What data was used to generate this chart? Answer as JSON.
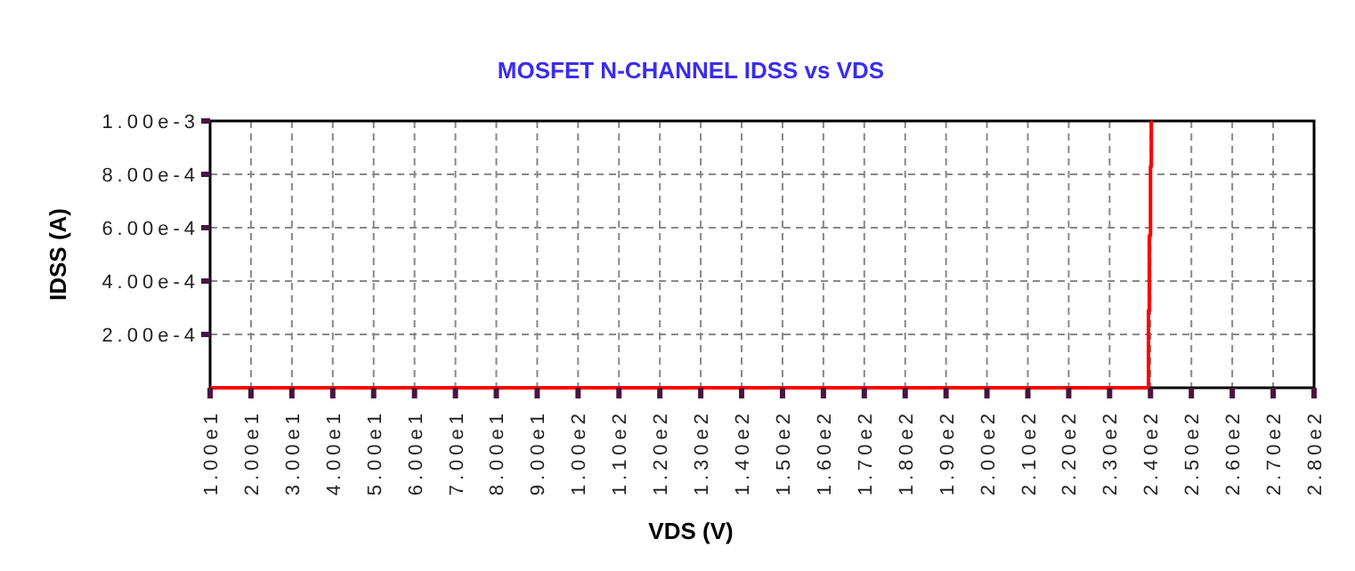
{
  "chart_data": {
    "type": "line",
    "title": "MOSFET N-CHANNEL IDSS vs VDS",
    "xlabel": "VDS (V)",
    "ylabel": "IDSS (A)",
    "xlim": [
      10,
      280
    ],
    "xticks": [
      {
        "value": 10,
        "label": "1.00e1"
      },
      {
        "value": 20,
        "label": "2.00e1"
      },
      {
        "value": 30,
        "label": "3.00e1"
      },
      {
        "value": 40,
        "label": "4.00e1"
      },
      {
        "value": 50,
        "label": "5.00e1"
      },
      {
        "value": 60,
        "label": "6.00e1"
      },
      {
        "value": 70,
        "label": "7.00e1"
      },
      {
        "value": 80,
        "label": "8.00e1"
      },
      {
        "value": 90,
        "label": "9.00e1"
      },
      {
        "value": 100,
        "label": "1.00e2"
      },
      {
        "value": 110,
        "label": "1.10e2"
      },
      {
        "value": 120,
        "label": "1.20e2"
      },
      {
        "value": 130,
        "label": "1.30e2"
      },
      {
        "value": 140,
        "label": "1.40e2"
      },
      {
        "value": 150,
        "label": "1.50e2"
      },
      {
        "value": 160,
        "label": "1.60e2"
      },
      {
        "value": 170,
        "label": "1.70e2"
      },
      {
        "value": 180,
        "label": "1.80e2"
      },
      {
        "value": 190,
        "label": "1.90e2"
      },
      {
        "value": 200,
        "label": "2.00e2"
      },
      {
        "value": 210,
        "label": "2.10e2"
      },
      {
        "value": 220,
        "label": "2.20e2"
      },
      {
        "value": 230,
        "label": "2.30e2"
      },
      {
        "value": 240,
        "label": "2.40e2"
      },
      {
        "value": 250,
        "label": "2.50e2"
      },
      {
        "value": 260,
        "label": "2.60e2"
      },
      {
        "value": 270,
        "label": "2.70e2"
      },
      {
        "value": 280,
        "label": "2.80e2"
      }
    ],
    "ylim": [
      0,
      0.001
    ],
    "yticks": [
      {
        "value": 0.0002,
        "label": "2.00e-4"
      },
      {
        "value": 0.0004,
        "label": "4.00e-4"
      },
      {
        "value": 0.0006,
        "label": "6.00e-4"
      },
      {
        "value": 0.0008,
        "label": "8.00e-4"
      },
      {
        "value": 0.001,
        "label": "1.00e-3"
      }
    ],
    "grid": true,
    "line_style": "solid",
    "marker": "none",
    "series": [
      {
        "color": "#ff0000",
        "x": [
          10,
          239.5,
          239.5,
          239.7,
          239.7,
          240,
          240,
          240.2,
          240.2
        ],
        "values": [
          0,
          0,
          0.00029,
          0.00029,
          0.00057,
          0.00057,
          0.00083,
          0.00083,
          0.001
        ]
      }
    ]
  }
}
